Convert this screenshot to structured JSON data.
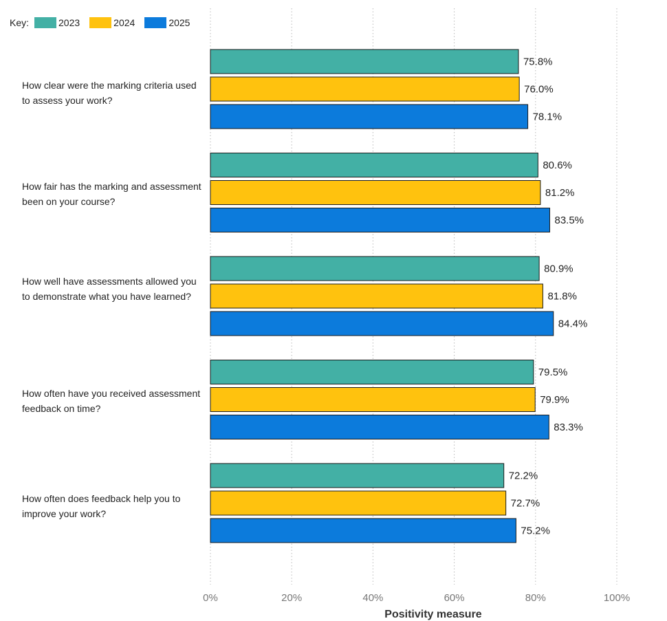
{
  "chart_data": {
    "type": "bar",
    "orientation": "horizontal",
    "legend_title": "Key:",
    "legend_position": "top-left",
    "categories": [
      "How clear were the marking criteria used to assess your work?",
      "How fair has the marking and assessment been on your course?",
      "How well have assessments allowed you to demonstrate what you have learned?",
      "How often have you received assessment feedback on time?",
      "How often does feedback help you to improve your work?"
    ],
    "series": [
      {
        "name": "2023",
        "color": "#43B0A5",
        "values": [
          75.8,
          80.6,
          80.9,
          79.5,
          72.2
        ]
      },
      {
        "name": "2024",
        "color": "#FFC20E",
        "values": [
          76.0,
          81.2,
          81.8,
          79.9,
          72.7
        ]
      },
      {
        "name": "2025",
        "color": "#0C7BDC",
        "values": [
          78.1,
          83.5,
          84.4,
          83.3,
          75.2
        ]
      }
    ],
    "value_labels": [
      [
        "75.8%",
        "76.0%",
        "78.1%"
      ],
      [
        "80.6%",
        "81.2%",
        "83.5%"
      ],
      [
        "80.9%",
        "81.8%",
        "84.4%"
      ],
      [
        "79.5%",
        "79.9%",
        "83.3%"
      ],
      [
        "72.2%",
        "72.7%",
        "75.2%"
      ]
    ],
    "xlabel": "Positivity measure",
    "xlim": [
      0,
      100
    ],
    "xticks": [
      0,
      20,
      40,
      60,
      80,
      100
    ],
    "xtick_labels": [
      "0%",
      "20%",
      "40%",
      "60%",
      "80%",
      "100%"
    ],
    "grid": "vertical-dotted"
  }
}
